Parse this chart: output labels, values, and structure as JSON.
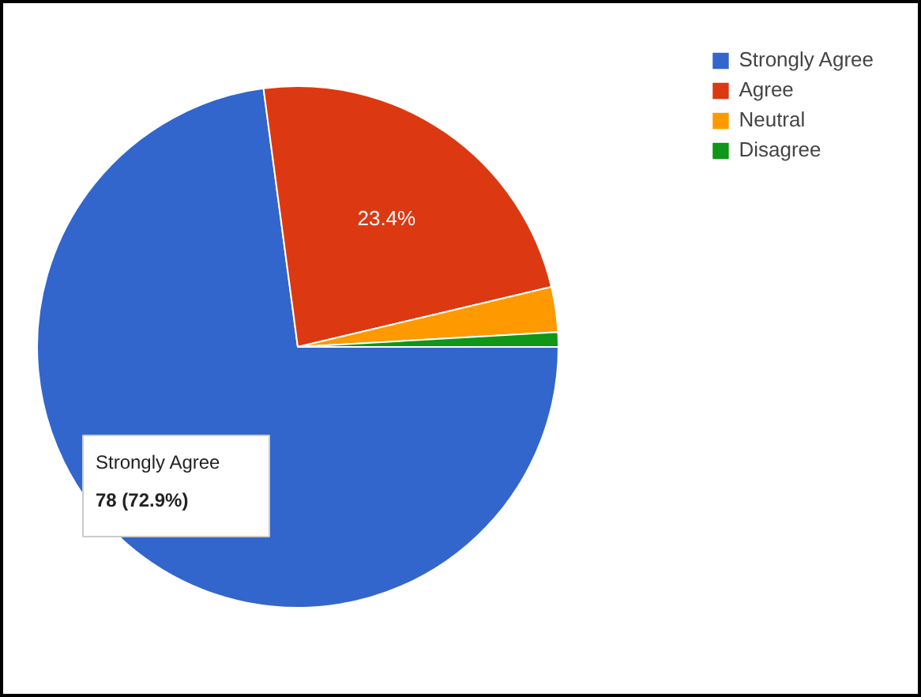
{
  "chart_data": {
    "type": "pie",
    "categories": [
      "Strongly Agree",
      "Agree",
      "Neutral",
      "Disagree"
    ],
    "values": [
      72.9,
      23.4,
      2.8,
      0.9
    ],
    "colors": [
      "#3366cc",
      "#dc3912",
      "#ff9900",
      "#109618"
    ],
    "value_labels": [
      "78 (72.9%)",
      "23.4%",
      null,
      null
    ],
    "legend": "top right"
  }
}
